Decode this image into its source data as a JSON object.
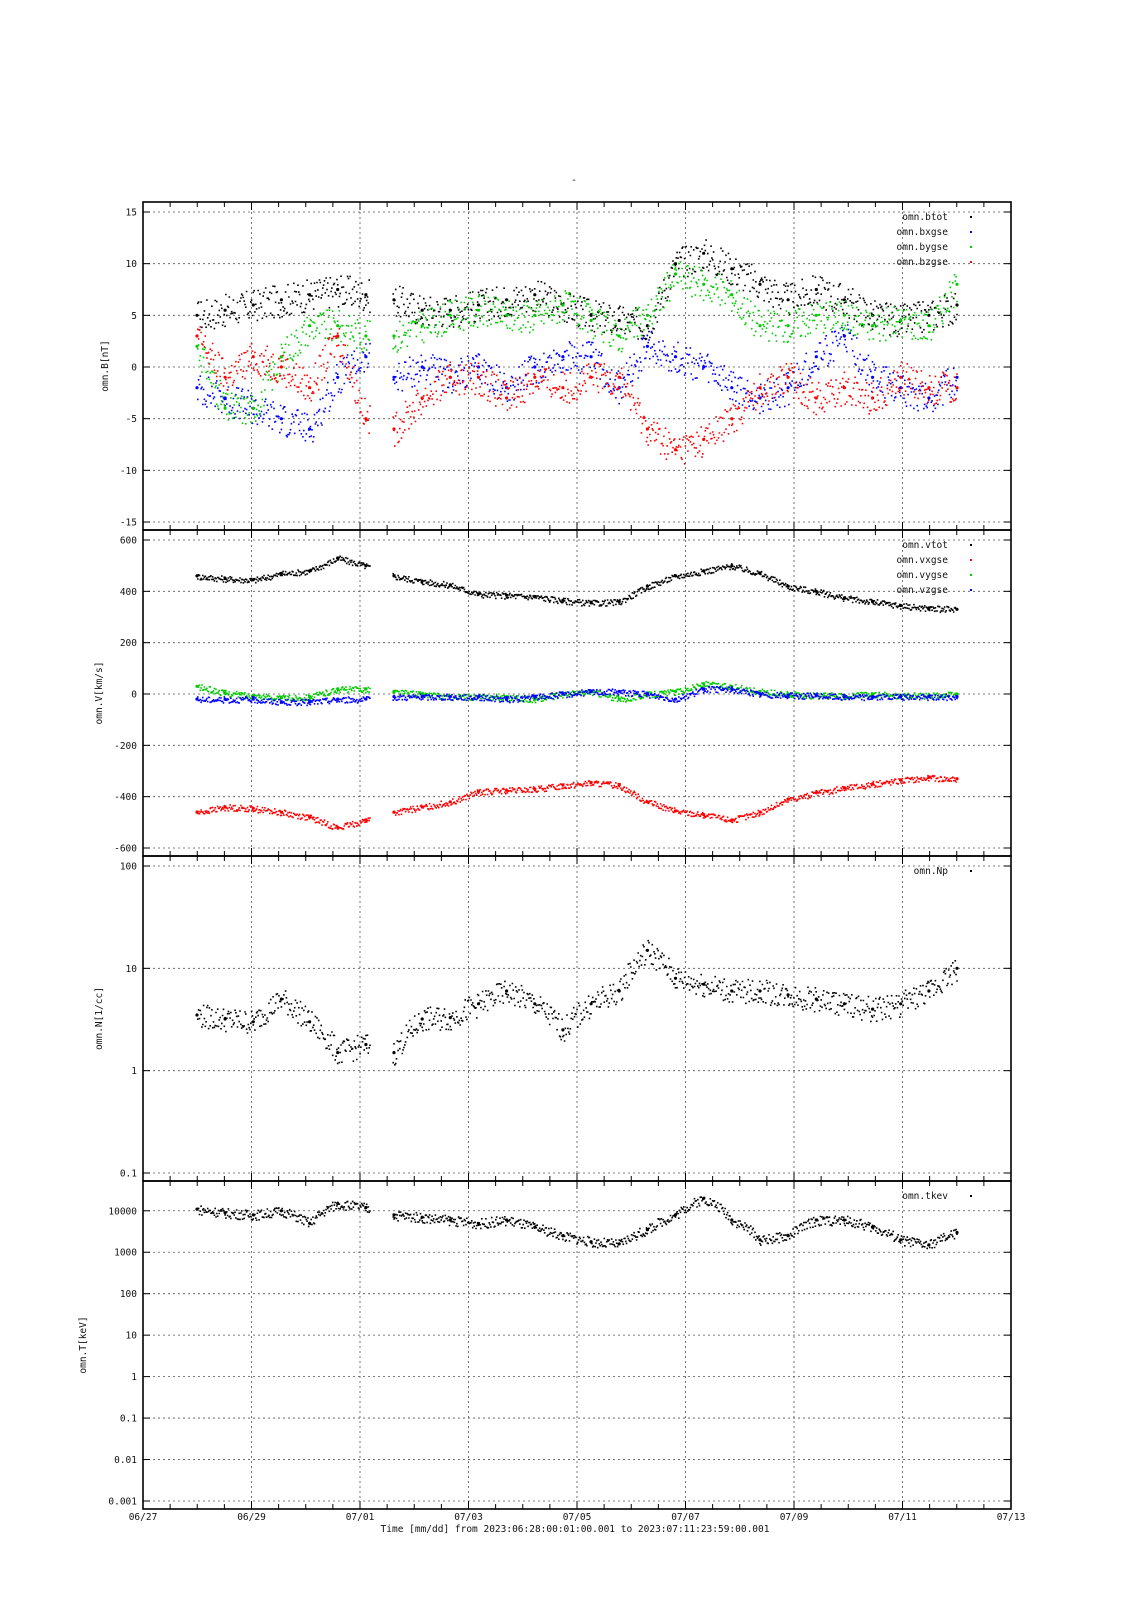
{
  "figure": {
    "title": "-",
    "x_ticks": [
      "06/27",
      "06/29",
      "07/01",
      "07/03",
      "07/05",
      "07/07",
      "07/09",
      "07/11",
      "07/13"
    ],
    "x_caption": "Time [mm/dd]  from 2023:06:28:00:01:00.001  to  2023:07:11:23:59:00.001"
  },
  "chart_data": [
    {
      "type": "scatter",
      "ylabel": "omn.B[nT]",
      "ylim": [
        -15,
        15
      ],
      "y_ticks": [
        "15",
        "10",
        "5",
        "0",
        "-5",
        "-10",
        "-15"
      ],
      "y_tick_values": [
        15,
        10,
        5,
        0,
        -5,
        -10,
        -15
      ],
      "grid": true,
      "legend_position": "top-right",
      "x": [
        "06/28",
        "06/28 12h",
        "06/29",
        "06/29 12h",
        "06/30",
        "06/30 12h",
        "07/01",
        "07/01 12h",
        "07/02",
        "07/02 12h",
        "07/03",
        "07/03 12h",
        "07/04",
        "07/04 12h",
        "07/05",
        "07/05 12h",
        "07/06",
        "07/06 12h",
        "07/07",
        "07/07 12h",
        "07/08",
        "07/08 12h",
        "07/09",
        "07/09 12h",
        "07/10",
        "07/10 12h",
        "07/11",
        "07/11 12h"
      ],
      "series": [
        {
          "name": "omn.btot",
          "color": "#000000",
          "values": [
            5,
            5.5,
            6,
            6.5,
            7,
            7.5,
            7,
            6.5,
            5.5,
            5.5,
            6,
            6.5,
            7,
            6,
            5,
            4.5,
            4,
            10,
            11,
            9.5,
            8,
            6.5,
            7.5,
            6.5,
            5,
            4.5,
            5,
            6
          ]
        },
        {
          "name": "omn.bxgse",
          "color": "#0000ff",
          "values": [
            -2,
            -3,
            -4,
            -5,
            -6,
            -1,
            1,
            -1,
            0,
            -1,
            0,
            -2,
            0,
            1,
            1,
            -2,
            2,
            1,
            0,
            -2,
            -3,
            -2,
            1,
            3,
            -1,
            -2,
            -3,
            -1
          ]
        },
        {
          "name": "omn.bygse",
          "color": "#00cc00",
          "values": [
            2,
            -4,
            -4,
            1,
            4,
            4,
            3,
            3,
            4,
            5,
            5.5,
            5,
            5,
            6,
            4.5,
            3,
            5,
            9,
            8,
            7,
            4,
            4,
            5,
            5,
            4,
            4.5,
            4,
            8
          ]
        },
        {
          "name": "omn.bzgse",
          "color": "#ff0000",
          "values": [
            3,
            -1,
            1,
            0,
            -2,
            3,
            -5,
            -6,
            -3,
            -1,
            -1,
            -3,
            -1,
            -2,
            -1,
            -1,
            -6,
            -8,
            -7,
            -5,
            -2,
            -1,
            -3,
            -2,
            -3,
            -1,
            -2,
            -2
          ]
        }
      ]
    },
    {
      "type": "scatter",
      "ylabel": "omn.V[km/s]",
      "ylim": [
        -600,
        600
      ],
      "y_ticks": [
        "600",
        "400",
        "200",
        "0",
        "-200",
        "-400",
        "-600"
      ],
      "y_tick_values": [
        600,
        400,
        200,
        0,
        -200,
        -400,
        -600
      ],
      "grid": true,
      "legend_position": "top-right",
      "x": [
        "06/28",
        "06/28 12h",
        "06/29",
        "06/29 12h",
        "06/30",
        "06/30 12h",
        "07/01",
        "07/01 12h",
        "07/02",
        "07/02 12h",
        "07/03",
        "07/03 12h",
        "07/04",
        "07/04 12h",
        "07/05",
        "07/05 12h",
        "07/06",
        "07/06 12h",
        "07/07",
        "07/07 12h",
        "07/08",
        "07/08 12h",
        "07/09",
        "07/09 12h",
        "07/10",
        "07/10 12h",
        "07/11",
        "07/11 12h"
      ],
      "series": [
        {
          "name": "omn.vtot",
          "color": "#000000",
          "values": [
            460,
            450,
            445,
            470,
            480,
            530,
            500,
            460,
            440,
            425,
            390,
            385,
            380,
            365,
            355,
            360,
            420,
            460,
            480,
            500,
            470,
            420,
            400,
            375,
            360,
            345,
            335,
            330
          ]
        },
        {
          "name": "omn.vxgse",
          "color": "#ff0000",
          "values": [
            -460,
            -440,
            -445,
            -460,
            -480,
            -520,
            -490,
            -460,
            -440,
            -420,
            -380,
            -375,
            -370,
            -355,
            -345,
            -355,
            -420,
            -455,
            -470,
            -490,
            -460,
            -410,
            -385,
            -365,
            -350,
            -335,
            -325,
            -330
          ]
        },
        {
          "name": "omn.vygse",
          "color": "#00cc00",
          "values": [
            30,
            5,
            -5,
            -15,
            -10,
            20,
            20,
            10,
            0,
            -10,
            -10,
            -10,
            -20,
            0,
            10,
            -20,
            0,
            10,
            40,
            30,
            10,
            0,
            -5,
            -5,
            0,
            -5,
            -5,
            0
          ]
        },
        {
          "name": "omn.vzgse",
          "color": "#0000ff",
          "values": [
            -20,
            -20,
            -20,
            -30,
            -30,
            -20,
            -20,
            -10,
            -10,
            -10,
            -10,
            -20,
            -10,
            0,
            10,
            10,
            0,
            -20,
            20,
            20,
            0,
            -5,
            -5,
            -10,
            -10,
            -10,
            -10,
            -10
          ]
        }
      ]
    },
    {
      "type": "scatter",
      "ylabel": "omn.N[1/cc]",
      "yscale": "log",
      "ylim": [
        0.1,
        100
      ],
      "y_ticks": [
        "100",
        "10",
        "1",
        "0.1"
      ],
      "y_tick_values": [
        100,
        10,
        1,
        0.1
      ],
      "grid": true,
      "legend_position": "top-right",
      "x": [
        "06/28",
        "06/28 12h",
        "06/29",
        "06/29 12h",
        "06/30",
        "06/30 12h",
        "07/01",
        "07/01 12h",
        "07/02",
        "07/02 12h",
        "07/03",
        "07/03 12h",
        "07/04",
        "07/04 12h",
        "07/05",
        "07/05 12h",
        "07/06",
        "07/06 12h",
        "07/07",
        "07/07 12h",
        "07/08",
        "07/08 12h",
        "07/09",
        "07/09 12h",
        "07/10",
        "07/10 12h",
        "07/11",
        "07/11 12h"
      ],
      "series": [
        {
          "name": "omn.Np",
          "color": "#000000",
          "values": [
            3.5,
            3.2,
            3.0,
            5,
            3,
            1.5,
            1.8,
            1.5,
            3.2,
            3.3,
            4.5,
            6,
            4.5,
            2.5,
            4.5,
            6,
            15,
            8,
            7,
            6,
            6,
            5.5,
            5,
            4.5,
            4,
            4.5,
            6,
            10
          ]
        }
      ]
    },
    {
      "type": "scatter",
      "ylabel": "omn.T[keV]",
      "yscale": "log",
      "ylim": [
        0.001,
        30000
      ],
      "y_ticks": [
        "10000",
        "1000",
        "100",
        "10",
        "1",
        "0.1",
        "0.01",
        "0.001"
      ],
      "y_tick_values": [
        10000,
        1000,
        100,
        10,
        1,
        0.1,
        0.01,
        0.001
      ],
      "grid": true,
      "legend_position": "top-right",
      "x": [
        "06/28",
        "06/28 12h",
        "06/29",
        "06/29 12h",
        "06/30",
        "06/30 12h",
        "07/01",
        "07/01 12h",
        "07/02",
        "07/02 12h",
        "07/03",
        "07/03 12h",
        "07/04",
        "07/04 12h",
        "07/05",
        "07/05 12h",
        "07/06",
        "07/06 12h",
        "07/07",
        "07/07 12h",
        "07/08",
        "07/08 12h",
        "07/09",
        "07/09 12h",
        "07/10",
        "07/10 12h",
        "07/11",
        "07/11 12h"
      ],
      "series": [
        {
          "name": "omn.tkev",
          "color": "#000000",
          "values": [
            11000,
            9000,
            8000,
            10000,
            5000,
            15000,
            12000,
            8000,
            7000,
            6000,
            5000,
            6000,
            4000,
            2500,
            1800,
            1600,
            3500,
            8000,
            20000,
            6000,
            2000,
            2500,
            6000,
            6000,
            4000,
            2000,
            1500,
            3000
          ]
        }
      ]
    }
  ]
}
